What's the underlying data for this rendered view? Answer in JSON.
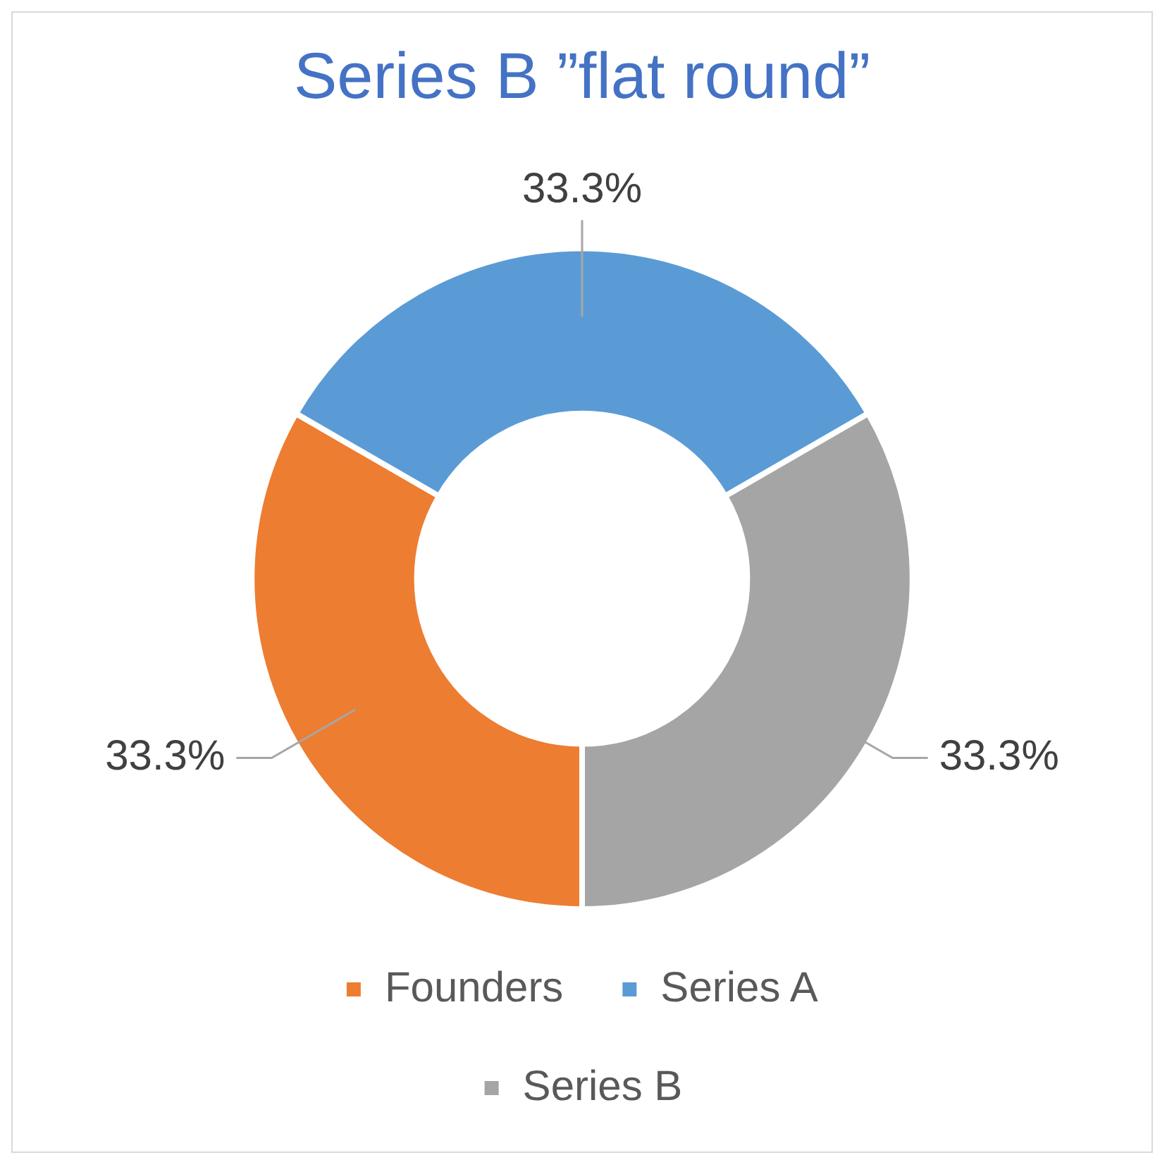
{
  "chart_data": {
    "type": "donut",
    "title": "Series B ”flat round”",
    "categories": [
      "Founders",
      "Series A",
      "Series B"
    ],
    "values": [
      33.3,
      33.3,
      33.3
    ],
    "value_labels": [
      "33.3%",
      "33.3%",
      "33.3%"
    ],
    "colors": [
      "#ed7d31",
      "#5b9bd5",
      "#a5a5a5"
    ],
    "legend": "bottom"
  }
}
